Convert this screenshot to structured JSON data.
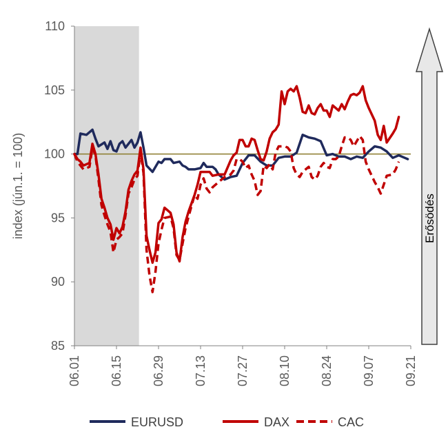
{
  "chart_data": {
    "type": "line",
    "ylabel": "index (jún.1. = 100)",
    "ylim": [
      85,
      110
    ],
    "yticks": [
      85,
      90,
      95,
      100,
      105,
      110
    ],
    "xlim": [
      0,
      112
    ],
    "xticks": [
      {
        "x": 0,
        "label": "06.01"
      },
      {
        "x": 14,
        "label": "06.15"
      },
      {
        "x": 28,
        "label": "06.29"
      },
      {
        "x": 42,
        "label": "07.13"
      },
      {
        "x": 56,
        "label": "07.27"
      },
      {
        "x": 70,
        "label": "08.10"
      },
      {
        "x": 84,
        "label": "08.24"
      },
      {
        "x": 98,
        "label": "09.07"
      },
      {
        "x": 112,
        "label": "09.21"
      }
    ],
    "shaded_region": [
      0,
      21.5
    ],
    "reference_line": 100,
    "annotation": {
      "label": "Erősödés",
      "direction": "up"
    },
    "legend_position": "bottom",
    "series": [
      {
        "name": "EURUSD",
        "color": "#1f2a5c",
        "style": "solid",
        "points": [
          [
            0,
            100
          ],
          [
            1,
            100
          ],
          [
            2,
            101.6
          ],
          [
            4,
            101.5
          ],
          [
            6,
            101.9
          ],
          [
            7,
            101.2
          ],
          [
            8,
            100.6
          ],
          [
            10,
            100.9
          ],
          [
            11,
            100.4
          ],
          [
            12,
            101
          ],
          [
            13,
            100.3
          ],
          [
            14,
            100.2
          ],
          [
            15,
            100.8
          ],
          [
            16,
            101
          ],
          [
            17,
            100.5
          ],
          [
            18,
            100.8
          ],
          [
            19,
            101.1
          ],
          [
            20,
            100.5
          ],
          [
            21,
            100.9
          ],
          [
            22,
            101.7
          ],
          [
            23,
            100.5
          ],
          [
            24,
            99.1
          ],
          [
            26,
            98.6
          ],
          [
            28,
            99.4
          ],
          [
            29,
            99.3
          ],
          [
            30,
            99.6
          ],
          [
            32,
            99.6
          ],
          [
            33,
            99.3
          ],
          [
            35,
            99.4
          ],
          [
            36,
            99.1
          ],
          [
            37,
            99.0
          ],
          [
            38,
            98.8
          ],
          [
            40,
            98.8
          ],
          [
            42,
            98.9
          ],
          [
            43,
            99.3
          ],
          [
            44,
            99
          ],
          [
            46,
            99
          ],
          [
            47,
            98.8
          ],
          [
            48,
            98.4
          ],
          [
            50,
            98
          ],
          [
            52,
            98.2
          ],
          [
            54,
            98.3
          ],
          [
            56,
            99.3
          ],
          [
            58,
            99.9
          ],
          [
            60,
            99.9
          ],
          [
            62,
            99.4
          ],
          [
            64,
            99.1
          ],
          [
            66,
            99.1
          ],
          [
            68,
            99.7
          ],
          [
            70,
            99.8
          ],
          [
            72,
            99.8
          ],
          [
            74,
            100.1
          ],
          [
            76,
            101.5
          ],
          [
            78,
            101.3
          ],
          [
            80,
            101.2
          ],
          [
            82,
            101
          ],
          [
            84,
            99.9
          ],
          [
            86,
            100
          ],
          [
            88,
            99.8
          ],
          [
            90,
            99.8
          ],
          [
            92,
            99.6
          ],
          [
            94,
            99.8
          ],
          [
            96,
            99.7
          ],
          [
            98,
            100.2
          ],
          [
            100,
            100.6
          ],
          [
            102,
            100.5
          ],
          [
            104,
            100.2
          ],
          [
            106,
            99.7
          ],
          [
            108,
            99.9
          ],
          [
            110,
            99.7
          ],
          [
            111,
            99.6
          ]
        ]
      },
      {
        "name": "DAX",
        "color": "#c00000",
        "style": "solid",
        "points": [
          [
            0,
            100
          ],
          [
            1,
            99.6
          ],
          [
            2,
            99.4
          ],
          [
            3,
            99.1
          ],
          [
            5,
            99.3
          ],
          [
            6,
            100.8
          ],
          [
            7,
            100
          ],
          [
            8,
            98.4
          ],
          [
            9,
            96.5
          ],
          [
            10,
            95.8
          ],
          [
            11,
            95
          ],
          [
            12,
            94.5
          ],
          [
            13,
            93.3
          ],
          [
            14,
            94.2
          ],
          [
            15,
            93.8
          ],
          [
            16,
            94.3
          ],
          [
            17,
            95.5
          ],
          [
            18,
            97.2
          ],
          [
            19,
            97.9
          ],
          [
            20,
            98.4
          ],
          [
            21,
            98.7
          ],
          [
            22,
            100.5
          ],
          [
            23,
            98.8
          ],
          [
            24,
            93.6
          ],
          [
            25,
            92.5
          ],
          [
            26,
            91.5
          ],
          [
            27,
            92.3
          ],
          [
            28,
            94.6
          ],
          [
            29,
            94.9
          ],
          [
            30,
            95.8
          ],
          [
            32,
            95.4
          ],
          [
            33,
            94.5
          ],
          [
            34,
            92.3
          ],
          [
            35,
            91.6
          ],
          [
            36,
            93.5
          ],
          [
            37,
            94.7
          ],
          [
            38,
            95.5
          ],
          [
            40,
            96.8
          ],
          [
            41,
            97.6
          ],
          [
            42,
            98.6
          ],
          [
            43,
            98.6
          ],
          [
            45,
            98.6
          ],
          [
            46,
            98.3
          ],
          [
            48,
            98.4
          ],
          [
            50,
            98.4
          ],
          [
            52,
            99.5
          ],
          [
            53,
            99.9
          ],
          [
            54,
            100.1
          ],
          [
            55,
            101.1
          ],
          [
            56,
            101.1
          ],
          [
            57,
            100.6
          ],
          [
            58,
            100.6
          ],
          [
            59,
            101.2
          ],
          [
            60,
            101.1
          ],
          [
            61,
            100.3
          ],
          [
            62,
            99.6
          ],
          [
            63,
            99.5
          ],
          [
            64,
            100.2
          ],
          [
            65,
            101.2
          ],
          [
            66,
            101.7
          ],
          [
            67,
            101.9
          ],
          [
            68,
            102.3
          ],
          [
            69,
            104.9
          ],
          [
            70,
            103.9
          ],
          [
            71,
            104.9
          ],
          [
            72,
            105.1
          ],
          [
            73,
            104.9
          ],
          [
            74,
            105.3
          ],
          [
            75,
            104.4
          ],
          [
            76,
            103.3
          ],
          [
            77,
            103.2
          ],
          [
            78,
            103.8
          ],
          [
            79,
            103.2
          ],
          [
            80,
            103.1
          ],
          [
            81,
            103.6
          ],
          [
            82,
            103.9
          ],
          [
            83,
            103.4
          ],
          [
            84,
            103.4
          ],
          [
            85,
            102.9
          ],
          [
            86,
            103.8
          ],
          [
            87,
            103.6
          ],
          [
            88,
            103.4
          ],
          [
            89,
            103.9
          ],
          [
            90,
            103.5
          ],
          [
            91,
            104.1
          ],
          [
            92,
            104.6
          ],
          [
            93,
            104.7
          ],
          [
            94,
            104.6
          ],
          [
            95,
            104.8
          ],
          [
            96,
            105.3
          ],
          [
            97,
            104.2
          ],
          [
            98,
            103.6
          ],
          [
            100,
            102.6
          ],
          [
            101,
            101.5
          ],
          [
            102,
            101.1
          ],
          [
            103,
            102.2
          ],
          [
            104,
            100.9
          ],
          [
            106,
            101.6
          ],
          [
            107,
            102
          ],
          [
            108,
            102.9
          ]
        ]
      },
      {
        "name": "CAC",
        "color": "#c00000",
        "style": "dashed",
        "points": [
          [
            0,
            100
          ],
          [
            1,
            99.4
          ],
          [
            2,
            99.1
          ],
          [
            3,
            98.8
          ],
          [
            5,
            99
          ],
          [
            6,
            100.5
          ],
          [
            7,
            99.9
          ],
          [
            8,
            98
          ],
          [
            9,
            96
          ],
          [
            10,
            95.2
          ],
          [
            11,
            94.5
          ],
          [
            12,
            93.9
          ],
          [
            13,
            92.3
          ],
          [
            14,
            93.3
          ],
          [
            15,
            93.5
          ],
          [
            16,
            93.8
          ],
          [
            17,
            95.2
          ],
          [
            18,
            96.9
          ],
          [
            19,
            97.4
          ],
          [
            20,
            98
          ],
          [
            21,
            98.3
          ],
          [
            22,
            100.2
          ],
          [
            23,
            98.5
          ],
          [
            24,
            92.5
          ],
          [
            25,
            90.5
          ],
          [
            26,
            89.2
          ],
          [
            27,
            90.8
          ],
          [
            28,
            93
          ],
          [
            29,
            94.1
          ],
          [
            30,
            95
          ],
          [
            32,
            95.1
          ],
          [
            33,
            94.2
          ],
          [
            34,
            92.1
          ],
          [
            35,
            91.7
          ],
          [
            36,
            93
          ],
          [
            37,
            94.2
          ],
          [
            38,
            95.1
          ],
          [
            40,
            96.8
          ],
          [
            41,
            96.5
          ],
          [
            42,
            97.6
          ],
          [
            43,
            98.1
          ],
          [
            44,
            97.3
          ],
          [
            45,
            97
          ],
          [
            46,
            97.4
          ],
          [
            48,
            97.8
          ],
          [
            50,
            98.2
          ],
          [
            52,
            98.4
          ],
          [
            53,
            98.7
          ],
          [
            54,
            99.6
          ],
          [
            55,
            99.6
          ],
          [
            56,
            99.4
          ],
          [
            57,
            98.9
          ],
          [
            58,
            99.1
          ],
          [
            59,
            98.4
          ],
          [
            60,
            97.9
          ],
          [
            61,
            96.8
          ],
          [
            62,
            97.1
          ],
          [
            63,
            99.1
          ],
          [
            64,
            98.9
          ],
          [
            65,
            99.2
          ],
          [
            66,
            98.8
          ],
          [
            67,
            100.1
          ],
          [
            68,
            100.6
          ],
          [
            70,
            100.6
          ],
          [
            71,
            100.5
          ],
          [
            72,
            100.2
          ],
          [
            73,
            98.9
          ],
          [
            74,
            98.4
          ],
          [
            75,
            98.2
          ],
          [
            76,
            98.6
          ],
          [
            77,
            98.8
          ],
          [
            78,
            99
          ],
          [
            79,
            98.2
          ],
          [
            80,
            98
          ],
          [
            81,
            98.3
          ],
          [
            82,
            99
          ],
          [
            83,
            99.3
          ],
          [
            84,
            99
          ],
          [
            85,
            98.9
          ],
          [
            86,
            99.6
          ],
          [
            87,
            99.6
          ],
          [
            88,
            99.8
          ],
          [
            89,
            100.6
          ],
          [
            90,
            101.3
          ],
          [
            91,
            101.3
          ],
          [
            92,
            101.1
          ],
          [
            93,
            100.6
          ],
          [
            94,
            101
          ],
          [
            95,
            101.4
          ],
          [
            96,
            101.1
          ],
          [
            97,
            99.4
          ],
          [
            98,
            98.8
          ],
          [
            100,
            97.8
          ],
          [
            101,
            97.4
          ],
          [
            102,
            96.9
          ],
          [
            103,
            97.6
          ],
          [
            104,
            98.3
          ],
          [
            106,
            98.4
          ],
          [
            107,
            98.8
          ],
          [
            108,
            99.4
          ]
        ]
      }
    ]
  }
}
